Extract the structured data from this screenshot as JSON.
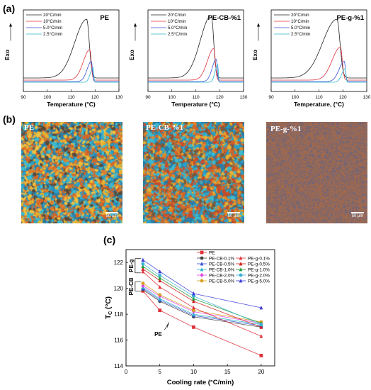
{
  "panels": {
    "a": {
      "letter": "(a)"
    },
    "b": {
      "letter": "(b)"
    },
    "c": {
      "letter": "(c)"
    }
  },
  "dsc_panels": [
    {
      "title": "PE",
      "xlabel": "Temperature (°C)",
      "ylabel": "Exo",
      "legend": [
        "20°C/min",
        "10°C/min",
        "5.0°C/min",
        "2.5°C/min"
      ],
      "xticks": [
        "90",
        "100",
        "110",
        "120",
        "130"
      ]
    },
    {
      "title": "PE-CB-%1",
      "xlabel": "Temperature (°C)",
      "ylabel": "Exo",
      "legend": [
        "20°C/min",
        "10°C/min",
        "5.0°C/min",
        "2.5°C/min"
      ],
      "xticks": [
        "90",
        "100",
        "110",
        "120",
        "130"
      ]
    },
    {
      "title": "PE-g-%1",
      "xlabel": "Temperature, (°C)",
      "ylabel": "Exo",
      "legend": [
        "20°C/min",
        "10°C/min",
        "5.0°C/min",
        "2.5°C/min"
      ],
      "xticks": [
        "90",
        "100",
        "110",
        "120",
        "130"
      ]
    }
  ],
  "dsc_colors": [
    "#222222",
    "#e0303a",
    "#3a53d6",
    "#2ab7c9"
  ],
  "micrographs": [
    {
      "label": "PE",
      "scale": "50 μm"
    },
    {
      "label": "PE-CB-%1",
      "scale": "50 μm"
    },
    {
      "label": "PE-g-%1",
      "scale": "50 μm"
    }
  ],
  "chart_data": {
    "type": "line",
    "xlabel": "Cooling rate (°C/min)",
    "ylabel": "T",
    "ylabel_sub": "C",
    "ylabel_unit": "(°C)",
    "xlim": [
      0,
      22
    ],
    "ylim": [
      114,
      123
    ],
    "xticks": [
      0,
      5,
      10,
      15,
      20
    ],
    "yticks": [
      114,
      116,
      118,
      120,
      122
    ],
    "x": [
      2.5,
      5,
      10,
      20
    ],
    "group_labels": {
      "pe_g": "PE-g",
      "pe_cb": "PE-CB",
      "pe": "PE"
    },
    "series": [
      {
        "name": "PE",
        "color": "#e0303a",
        "marker": "square",
        "values": [
          119.8,
          118.3,
          117.0,
          114.8
        ]
      },
      {
        "name": "PE-CB-0.1%",
        "color": "#444444",
        "marker": "circle",
        "values": [
          119.9,
          119.0,
          117.8,
          117.0
        ]
      },
      {
        "name": "PE-CB-0.5%",
        "color": "#3a53d6",
        "marker": "triangle",
        "values": [
          120.0,
          119.1,
          117.9,
          117.1
        ]
      },
      {
        "name": "PE-CB-1.0%",
        "color": "#2ab7c9",
        "marker": "triangle",
        "values": [
          120.1,
          119.2,
          118.0,
          117.2
        ]
      },
      {
        "name": "PE-CB-2.0%",
        "color": "#e040e0",
        "marker": "diamond",
        "values": [
          120.2,
          119.4,
          118.2,
          117.3
        ]
      },
      {
        "name": "PE-CB-5.0%",
        "color": "#d6a020",
        "marker": "circle",
        "values": [
          120.4,
          119.5,
          118.3,
          117.4
        ]
      },
      {
        "name": "PE-g-0.1%",
        "color": "#e0303a",
        "marker": "triangle",
        "values": [
          121.3,
          120.1,
          118.5,
          116.3
        ]
      },
      {
        "name": "PE-g-0.5%",
        "color": "#d02020",
        "marker": "triangle",
        "values": [
          121.5,
          120.6,
          119.0,
          117.0
        ]
      },
      {
        "name": "PE-g-1.0%",
        "color": "#1e9e3a",
        "marker": "triangle",
        "values": [
          121.7,
          120.8,
          119.2,
          117.3
        ]
      },
      {
        "name": "PE-g-2.0%",
        "color": "#3ab0d6",
        "marker": "circle",
        "values": [
          121.9,
          121.0,
          119.4,
          117.2
        ]
      },
      {
        "name": "PE-g-5.0%",
        "color": "#3a3ad6",
        "marker": "triangle",
        "values": [
          122.2,
          121.3,
          119.6,
          118.5
        ]
      }
    ]
  }
}
